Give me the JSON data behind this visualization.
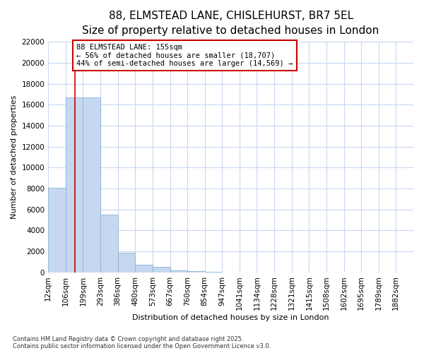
{
  "title_line1": "88, ELMSTEAD LANE, CHISLEHURST, BR7 5EL",
  "title_line2": "Size of property relative to detached houses in London",
  "xlabel": "Distribution of detached houses by size in London",
  "ylabel": "Number of detached properties",
  "annotation_title": "88 ELMSTEAD LANE: 155sqm",
  "annotation_line2": "← 56% of detached houses are smaller (18,707)",
  "annotation_line3": "44% of semi-detached houses are larger (14,569) →",
  "vline_x": 155,
  "categories": [
    "12sqm",
    "106sqm",
    "199sqm",
    "293sqm",
    "386sqm",
    "480sqm",
    "573sqm",
    "667sqm",
    "760sqm",
    "854sqm",
    "947sqm",
    "1041sqm",
    "1134sqm",
    "1228sqm",
    "1321sqm",
    "1415sqm",
    "1508sqm",
    "1602sqm",
    "1695sqm",
    "1789sqm",
    "1882sqm"
  ],
  "bin_edges": [
    12,
    106,
    199,
    293,
    386,
    480,
    573,
    667,
    760,
    854,
    947,
    1041,
    1134,
    1228,
    1321,
    1415,
    1508,
    1602,
    1695,
    1789,
    1882
  ],
  "bin_width": 94,
  "values": [
    8100,
    16700,
    16700,
    5500,
    1900,
    750,
    500,
    200,
    100,
    50,
    15,
    8,
    4,
    2,
    1,
    1,
    0,
    0,
    0,
    0,
    0
  ],
  "bar_color": "#c5d8f0",
  "bar_edge_color": "#8ab4d8",
  "vline_color": "#cc0000",
  "annotation_box_color": "#cc0000",
  "background_color": "#ffffff",
  "grid_color": "#c8d8f0",
  "ylim": [
    0,
    22000
  ],
  "yticks": [
    0,
    2000,
    4000,
    6000,
    8000,
    10000,
    12000,
    14000,
    16000,
    18000,
    20000,
    22000
  ],
  "footer_line1": "Contains HM Land Registry data © Crown copyright and database right 2025.",
  "footer_line2": "Contains public sector information licensed under the Open Government Licence v3.0.",
  "title_fontsize": 11,
  "subtitle_fontsize": 10,
  "axis_label_fontsize": 8,
  "tick_fontsize": 7.5,
  "footer_fontsize": 6,
  "annotation_fontsize": 7.5
}
